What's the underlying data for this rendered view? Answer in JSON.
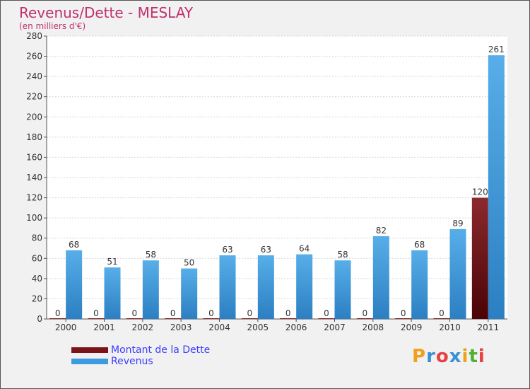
{
  "chart_data": {
    "type": "bar",
    "title": "Revenus/Dette - MESLAY",
    "subtitle": "(en milliers d'€)",
    "categories": [
      "2000",
      "2001",
      "2002",
      "2003",
      "2004",
      "2005",
      "2006",
      "2007",
      "2008",
      "2009",
      "2010",
      "2011"
    ],
    "series": [
      {
        "name": "Montant de la Dette",
        "color": "#7a1418",
        "values": [
          0,
          0,
          0,
          0,
          0,
          0,
          0,
          0,
          0,
          0,
          0,
          120
        ]
      },
      {
        "name": "Revenus",
        "color": "#3d9be0",
        "values": [
          68,
          51,
          58,
          50,
          63,
          63,
          64,
          58,
          82,
          68,
          89,
          261
        ]
      }
    ],
    "ylim": [
      0,
      280
    ],
    "yticks": [
      0,
      20,
      40,
      60,
      80,
      100,
      120,
      140,
      160,
      180,
      200,
      220,
      240,
      260,
      280
    ],
    "grid": true,
    "legend_position": "bottom-left"
  },
  "logo": {
    "letters": [
      {
        "ch": "P",
        "color": "#f0a020"
      },
      {
        "ch": "r",
        "color": "#3a8fd6"
      },
      {
        "ch": "o",
        "color": "#e84040"
      },
      {
        "ch": "x",
        "color": "#3a8fd6"
      },
      {
        "ch": "i",
        "color": "#f0a020"
      },
      {
        "ch": "t",
        "color": "#50b030"
      },
      {
        "ch": "i",
        "color": "#e84040"
      }
    ]
  }
}
